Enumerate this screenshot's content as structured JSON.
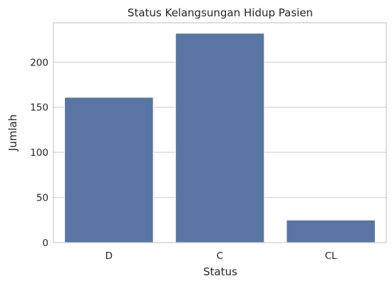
{
  "chart_data": {
    "type": "bar",
    "title": "Status Kelangsungan Hidup Pasien",
    "xlabel": "Status",
    "ylabel": "Jumlah",
    "categories": [
      "D",
      "C",
      "CL"
    ],
    "values": [
      161,
      232,
      25
    ],
    "ylim": [
      0,
      243.6
    ],
    "yticks": [
      0,
      50,
      100,
      150,
      200
    ],
    "grid": true,
    "bar_color": "#5975a4"
  }
}
